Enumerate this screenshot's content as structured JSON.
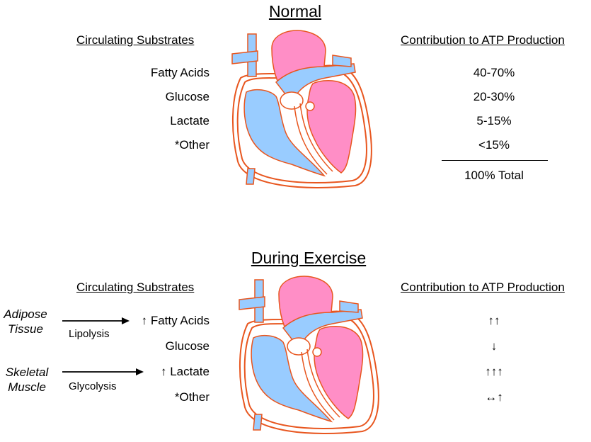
{
  "normal": {
    "title": "Normal",
    "substrates_header": "Circulating Substrates",
    "contribution_header": "Contribution to ATP Production",
    "substrates": [
      "Fatty Acids",
      "Glucose",
      "Lactate",
      "*Other"
    ],
    "contributions": [
      "40-70%",
      "20-30%",
      "5-15%",
      "<15%"
    ],
    "total": "100% Total"
  },
  "exercise": {
    "title": "During Exercise",
    "substrates_header": "Circulating Substrates",
    "contribution_header": "Contribution to ATP Production",
    "substrates": [
      "↑ Fatty Acids",
      "Glucose",
      "↑ Lactate",
      "*Other"
    ],
    "contributions": [
      "↑↑",
      "↓",
      "↑↑↑",
      "↔↑"
    ],
    "sources": [
      {
        "tissue": "Adipose Tissue",
        "line1": "Adipose",
        "line2": "Tissue",
        "process": "Lipolysis"
      },
      {
        "tissue": "Skeletal Muscle",
        "line1": "Skeletal",
        "line2": "Muscle",
        "process": "Glycolysis"
      }
    ]
  },
  "colors": {
    "deoxygenated_blue": "#99ccff",
    "oxygenated_pink": "#ff8ec6",
    "heart_outline": "#e8561f"
  }
}
